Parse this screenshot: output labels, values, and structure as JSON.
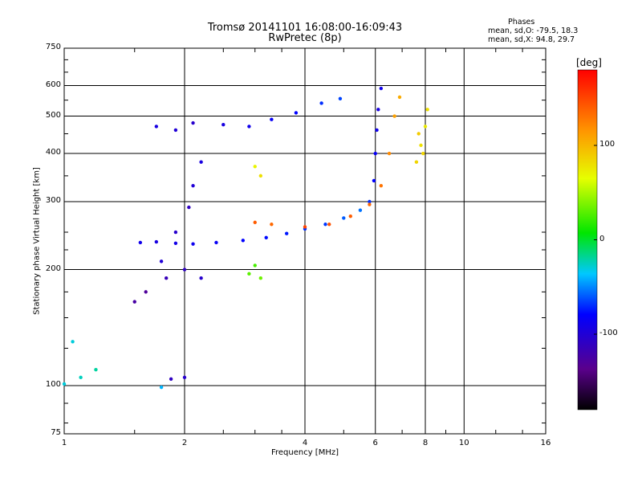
{
  "chart_data": {
    "type": "scatter",
    "title": "Tromsø 20141101 16:08:00-16:09:43",
    "subtitle": "RwPretec (8p)",
    "xlabel": "Frequency [MHz]",
    "ylabel": "Stationary phase Virtual Height [km]",
    "xscale": "log",
    "yscale": "log",
    "xlim": [
      1,
      16
    ],
    "ylim": [
      75,
      750
    ],
    "x_ticks": [
      "1",
      "2",
      "4",
      "6",
      "8",
      "10",
      "16"
    ],
    "x_tick_values": [
      1,
      2,
      4,
      6,
      8,
      10,
      16
    ],
    "y_ticks": [
      "750",
      "600",
      "500",
      "400",
      "300",
      "200",
      "100",
      "75"
    ],
    "y_tick_values": [
      750,
      600,
      500,
      400,
      300,
      200,
      100,
      75
    ],
    "grid": true,
    "phases": {
      "title": "Phases",
      "o_text": "mean, sd,O: -79.5, 18.3",
      "x_text": "mean, sd,X: 94.8, 29.7"
    },
    "colorbar": {
      "unit": "[deg]",
      "range": [
        -180,
        180
      ],
      "tick_labels": [
        "100",
        "0",
        "-100"
      ],
      "tick_values": [
        100,
        0,
        -100
      ]
    },
    "series": [
      {
        "points": [
          [
            1.55,
            235,
            -90
          ],
          [
            1.7,
            236,
            -95
          ],
          [
            1.9,
            234,
            -92
          ],
          [
            2.1,
            233,
            -88
          ],
          [
            2.4,
            235,
            -85
          ],
          [
            2.8,
            238,
            -80
          ],
          [
            3.2,
            242,
            -78
          ],
          [
            3.6,
            248,
            -75
          ],
          [
            4.0,
            255,
            -70
          ],
          [
            4.5,
            262,
            -68
          ],
          [
            5.0,
            272,
            -60
          ],
          [
            5.5,
            285,
            -55
          ],
          [
            5.8,
            300,
            -70
          ],
          [
            5.95,
            340,
            -80
          ],
          [
            6.0,
            400,
            -85
          ],
          [
            6.05,
            460,
            -90
          ],
          [
            6.1,
            520,
            -95
          ],
          [
            6.2,
            590,
            -90
          ]
        ]
      },
      {
        "points": [
          [
            3.0,
            265,
            140
          ],
          [
            3.3,
            262,
            135
          ],
          [
            4.0,
            258,
            150
          ],
          [
            4.6,
            262,
            145
          ],
          [
            5.2,
            275,
            140
          ],
          [
            5.8,
            295,
            135
          ],
          [
            6.2,
            330,
            130
          ],
          [
            6.5,
            400,
            120
          ],
          [
            6.7,
            500,
            110
          ],
          [
            6.9,
            560,
            105
          ]
        ]
      },
      {
        "points": [
          [
            7.6,
            380,
            85
          ],
          [
            7.8,
            420,
            80
          ],
          [
            8.0,
            470,
            75
          ],
          [
            8.1,
            520,
            80
          ],
          [
            7.7,
            450,
            90
          ],
          [
            7.9,
            400,
            85
          ]
        ]
      },
      {
        "points": [
          [
            1.7,
            470,
            -95
          ],
          [
            1.9,
            460,
            -100
          ],
          [
            2.1,
            480,
            -105
          ],
          [
            2.5,
            475,
            -95
          ],
          [
            2.9,
            470,
            -90
          ],
          [
            3.3,
            490,
            -85
          ],
          [
            3.8,
            510,
            -80
          ],
          [
            4.4,
            540,
            -70
          ],
          [
            4.9,
            555,
            -65
          ]
        ]
      },
      {
        "points": [
          [
            1.5,
            165,
            -125
          ],
          [
            1.6,
            175,
            -130
          ],
          [
            1.8,
            190,
            -115
          ],
          [
            2.0,
            200,
            -110
          ],
          [
            2.2,
            190,
            -105
          ],
          [
            1.75,
            210,
            -100
          ],
          [
            1.9,
            250,
            -105
          ],
          [
            2.05,
            290,
            -110
          ],
          [
            2.1,
            330,
            -100
          ],
          [
            2.2,
            380,
            -95
          ]
        ]
      },
      {
        "points": [
          [
            3.0,
            370,
            70
          ],
          [
            3.1,
            350,
            80
          ],
          [
            2.9,
            195,
            30
          ],
          [
            3.0,
            205,
            25
          ],
          [
            3.1,
            190,
            35
          ]
        ]
      },
      {
        "points": [
          [
            1.0,
            101,
            -30
          ],
          [
            1.1,
            105,
            -25
          ],
          [
            1.05,
            130,
            -30
          ],
          [
            1.2,
            110,
            -20
          ],
          [
            1.75,
            99,
            -40
          ],
          [
            1.85,
            104,
            -110
          ],
          [
            2.0,
            105,
            -105
          ]
        ]
      }
    ]
  }
}
